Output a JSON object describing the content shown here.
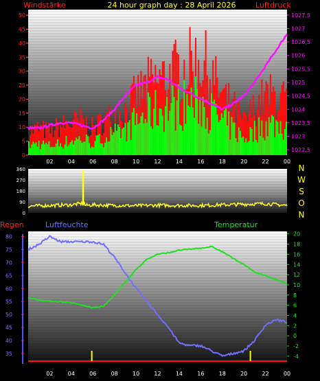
{
  "header": {
    "left_title": "Windstärke",
    "center_title": "24 hour graph day : 28 April 2026",
    "right_title": "Luftdruck"
  },
  "colors": {
    "background": "#000000",
    "wind_label": "#ff2020",
    "wind_gust": "#ff1010",
    "wind_avg": "#10ff10",
    "pressure": "#ff10ff",
    "title": "#ffff00",
    "direction": "#ffff20",
    "direction_letters": "#ffff00",
    "rain": "#ff2020",
    "humidity": "#7070ff",
    "temperature": "#20e020",
    "tick_text": "#ffffff",
    "wind_axis_text": "#ff2020",
    "pressure_axis_text": "#ff10ff",
    "humidity_axis_text": "#7070ff",
    "temperature_axis_text": "#20e020",
    "direction_axis_text": "#ffffff",
    "rain_bar": "#ffff00"
  },
  "x_ticks": [
    "02",
    "04",
    "06",
    "08",
    "10",
    "12",
    "14",
    "16",
    "18",
    "20",
    "22",
    "00"
  ],
  "direction_letters": [
    "N",
    "W",
    "S",
    "O",
    "N"
  ],
  "chart_data": [
    {
      "type": "line",
      "title": "24 hour graph day : 28 April 2026",
      "left_axis_label": "Windstärke",
      "right_axis_label": "Luftdruck",
      "x_range_hours": [
        0,
        24
      ],
      "y_left_ticks": [
        "0",
        "5",
        "10",
        "15",
        "20",
        "25",
        "30",
        "35",
        "40",
        "45",
        "50"
      ],
      "y_left_range": [
        0,
        52
      ],
      "y_right_ticks": [
        "1022,5",
        "1023",
        "1023,5",
        "1024",
        "1024,5",
        "1025",
        "1025,5",
        "1026",
        "1026,5",
        "1027",
        "1027,5"
      ],
      "y_right_range": [
        1022.3,
        1027.7
      ],
      "grid": false,
      "series": [
        {
          "name": "",
          "kind": "wind_gust",
          "hours": [
            0,
            1,
            2,
            3,
            4,
            5,
            6,
            7,
            8,
            9,
            10,
            11,
            12,
            13,
            14,
            15,
            16,
            17,
            18,
            19,
            20,
            21,
            22,
            23,
            24
          ],
          "values": [
            9,
            10,
            9,
            11,
            12,
            13,
            10,
            13,
            15,
            17,
            22,
            26,
            28,
            30,
            32,
            34,
            36,
            30,
            22,
            18,
            12,
            18,
            22,
            22,
            20
          ]
        },
        {
          "name": "",
          "kind": "wind_avg",
          "hours": [
            0,
            1,
            2,
            3,
            4,
            5,
            6,
            7,
            8,
            9,
            10,
            11,
            12,
            13,
            14,
            15,
            16,
            17,
            18,
            19,
            20,
            21,
            22,
            23,
            24
          ],
          "values": [
            4,
            5,
            4,
            5,
            6,
            7,
            5,
            7,
            9,
            11,
            14,
            17,
            19,
            20,
            21,
            22,
            22,
            18,
            14,
            11,
            7,
            10,
            13,
            13,
            12
          ]
        },
        {
          "name": "",
          "kind": "pressure",
          "hours": [
            0,
            1,
            2,
            3,
            4,
            5,
            6,
            7,
            8,
            9,
            10,
            11,
            12,
            13,
            14,
            15,
            16,
            17,
            18,
            19,
            20,
            21,
            22,
            23,
            24
          ],
          "values": [
            1023.3,
            1023.3,
            1023.4,
            1023.5,
            1023.5,
            1023.4,
            1023.3,
            1023.6,
            1024.0,
            1024.5,
            1024.9,
            1025.0,
            1025.2,
            1025.1,
            1024.8,
            1024.6,
            1024.4,
            1024.2,
            1024.0,
            1024.2,
            1024.5,
            1025.0,
            1025.6,
            1026.2,
            1026.8
          ]
        }
      ]
    },
    {
      "type": "line",
      "title": "",
      "right_axis_label": "",
      "x_range_hours": [
        0,
        24
      ],
      "y_left_ticks": [
        "0",
        "90",
        "180",
        "270",
        "360"
      ],
      "y_left_range": [
        0,
        360
      ],
      "grid": false,
      "series": [
        {
          "name": "",
          "kind": "wind_direction",
          "hours": [
            0,
            2,
            4,
            5.2,
            5.3,
            6,
            8,
            10,
            12,
            14,
            16,
            18,
            20,
            22,
            24
          ],
          "values": [
            55,
            60,
            65,
            80,
            60,
            65,
            60,
            58,
            62,
            60,
            60,
            65,
            70,
            75,
            60
          ]
        }
      ],
      "spikes": [
        {
          "hour": 5.1,
          "value": 350
        }
      ]
    },
    {
      "type": "line",
      "left_axis_label": "Regen",
      "legend": [
        "Luftfeuchte",
        "Temperatur"
      ],
      "x_range_hours": [
        0,
        24
      ],
      "y_left_ticks": [
        "35",
        "40",
        "45",
        "50",
        "55",
        "60",
        "65",
        "70",
        "75",
        "80"
      ],
      "y_left_range": [
        31,
        82
      ],
      "y_right_ticks": [
        "-4",
        "-2",
        "0",
        "2",
        "4",
        "6",
        "8",
        "10",
        "12",
        "14",
        "16",
        "18",
        "20"
      ],
      "y_right_range": [
        -5.5,
        20.5
      ],
      "grid": false,
      "series": [
        {
          "name": "Luftfeuchte",
          "kind": "humidity",
          "hours": [
            0,
            1,
            2,
            3,
            4,
            5,
            6,
            7,
            8,
            9,
            10,
            11,
            12,
            13,
            14,
            15,
            16,
            17,
            18,
            19,
            20,
            21,
            22,
            23,
            24
          ],
          "values": [
            75,
            77,
            80,
            78,
            78,
            78,
            78,
            77,
            72,
            66,
            60,
            55,
            50,
            45,
            39,
            38,
            38,
            36,
            34,
            35,
            36,
            40,
            46,
            48,
            47
          ]
        },
        {
          "name": "Temperatur",
          "kind": "temperature",
          "hours": [
            0,
            1,
            2,
            3,
            4,
            5,
            6,
            7,
            8,
            9,
            10,
            11,
            12,
            13,
            14,
            15,
            16,
            17,
            18,
            19,
            20,
            21,
            22,
            23,
            24
          ],
          "values": [
            7.5,
            7.0,
            6.8,
            6.7,
            6.5,
            6.0,
            5.5,
            5.8,
            8.0,
            10.5,
            13.0,
            15.0,
            16.0,
            16.3,
            16.8,
            17.0,
            17.2,
            17.5,
            16.5,
            15.2,
            14.0,
            12.5,
            11.8,
            11.0,
            10.2
          ]
        }
      ],
      "rain_marks_hours": [
        5.9,
        20.6
      ]
    }
  ]
}
